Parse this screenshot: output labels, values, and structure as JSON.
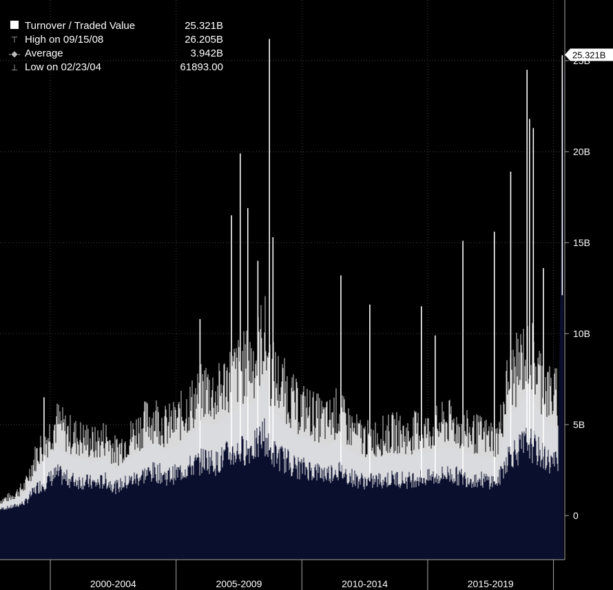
{
  "chart_data": {
    "type": "area",
    "legend": [
      {
        "glyph": "square-icon",
        "label": "Turnover / Traded Value",
        "value": "25.321B"
      },
      {
        "glyph": "high-marker-icon",
        "label": "High on 09/15/08",
        "value": "26.205B"
      },
      {
        "glyph": "average-marker-icon",
        "label": "Average",
        "value": "3.942B"
      },
      {
        "glyph": "low-marker-icon",
        "label": "Low on 02/23/04",
        "value": "61893.00"
      }
    ],
    "last_value_label": "25.321B",
    "y_ticks": [
      {
        "value": 0,
        "label": "0"
      },
      {
        "value": 5,
        "label": "5B"
      },
      {
        "value": 10,
        "label": "10B"
      },
      {
        "value": 15,
        "label": "15B"
      },
      {
        "value": 20,
        "label": "20B"
      },
      {
        "value": 25,
        "label": "25B"
      }
    ],
    "x_periods": [
      "2000-2004",
      "2005-2009",
      "2010-2014",
      "2015-2019"
    ],
    "ylim": [
      -2.5,
      28
    ],
    "grid": true,
    "colors": {
      "fill": "#0b0f2e",
      "line": "#ffffff",
      "grid": "#4a4a4a",
      "background": "#000000"
    },
    "series": [
      {
        "name": "Turnover / Traded Value",
        "x": [
          1998.0,
          1998.5,
          1999.0,
          1999.2,
          1999.5,
          1999.8,
          2000.0,
          2000.3,
          2000.6,
          2001.0,
          2001.4,
          2001.8,
          2002.2,
          2002.6,
          2003.0,
          2003.4,
          2003.8,
          2004.2,
          2004.6,
          2005.0,
          2005.4,
          2005.8,
          2006.2,
          2006.6,
          2007.0,
          2007.4,
          2007.8,
          2008.2,
          2008.5,
          2008.7,
          2009.0,
          2009.4,
          2009.8,
          2010.2,
          2010.6,
          2011.0,
          2011.4,
          2011.8,
          2012.2,
          2012.6,
          2013.0,
          2013.4,
          2013.8,
          2014.2,
          2014.6,
          2015.0,
          2015.4,
          2015.8,
          2016.2,
          2016.6,
          2017.0,
          2017.4,
          2017.8,
          2018.2,
          2018.6,
          2019.0,
          2019.4,
          2019.8,
          2020.2,
          2020.4
        ],
        "values": [
          0.6,
          0.8,
          1.2,
          1.8,
          2.6,
          3.0,
          3.4,
          3.8,
          3.4,
          3.2,
          3.1,
          2.9,
          3.2,
          2.6,
          3.0,
          3.4,
          3.8,
          4.0,
          3.6,
          3.8,
          4.3,
          4.7,
          5.2,
          4.8,
          5.5,
          5.8,
          6.1,
          6.4,
          7.5,
          6.0,
          5.5,
          5.0,
          4.4,
          4.3,
          4.0,
          3.8,
          4.2,
          3.7,
          3.3,
          3.1,
          3.2,
          3.3,
          3.4,
          3.2,
          3.5,
          3.4,
          3.6,
          3.8,
          3.6,
          3.4,
          3.3,
          3.2,
          3.1,
          5.5,
          6.0,
          6.8,
          5.8,
          5.0,
          4.8,
          25.3
        ],
        "spikes": [
          {
            "x": 1999.75,
            "y": 6.5
          },
          {
            "x": 2005.95,
            "y": 10.8
          },
          {
            "x": 2007.2,
            "y": 16.5
          },
          {
            "x": 2007.55,
            "y": 19.9
          },
          {
            "x": 2007.85,
            "y": 16.9
          },
          {
            "x": 2008.25,
            "y": 14.0
          },
          {
            "x": 2008.71,
            "y": 26.2
          },
          {
            "x": 2008.85,
            "y": 15.3
          },
          {
            "x": 2011.55,
            "y": 13.2
          },
          {
            "x": 2012.7,
            "y": 11.6
          },
          {
            "x": 2014.75,
            "y": 11.5
          },
          {
            "x": 2015.3,
            "y": 9.9
          },
          {
            "x": 2016.4,
            "y": 15.1
          },
          {
            "x": 2017.65,
            "y": 15.6
          },
          {
            "x": 2018.3,
            "y": 18.9
          },
          {
            "x": 2018.95,
            "y": 24.5
          },
          {
            "x": 2019.05,
            "y": 21.8
          },
          {
            "x": 2019.2,
            "y": 21.3
          },
          {
            "x": 2019.6,
            "y": 13.6
          },
          {
            "x": 2020.35,
            "y": 25.3
          }
        ]
      }
    ]
  }
}
